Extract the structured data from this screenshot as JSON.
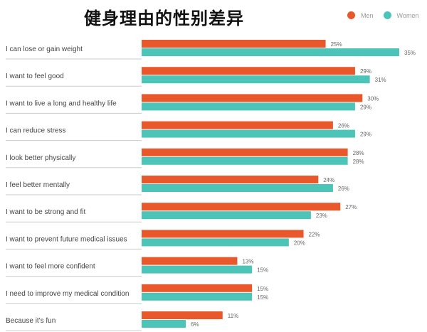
{
  "chart_data": {
    "type": "bar",
    "orientation": "horizontal",
    "title": "健身理由的性别差异",
    "legend_position": "top-right",
    "grid": false,
    "categories": [
      "I can lose or gain weight",
      "I want to feel good",
      "I want to live a long and healthy life",
      "I can reduce stress",
      "I look better physically",
      "I feel better mentally",
      "I want to be strong and fit",
      "I want to prevent future medical issues",
      "I want to feel more confident",
      "I need to improve my medical condition",
      "Because it's fun"
    ],
    "series": [
      {
        "name": "Men",
        "color": "#e8582a",
        "values": [
          25,
          29,
          30,
          26,
          28,
          24,
          27,
          22,
          13,
          15,
          11
        ]
      },
      {
        "name": "Women",
        "color": "#4dc4b8",
        "values": [
          35,
          31,
          29,
          29,
          28,
          26,
          23,
          20,
          15,
          15,
          6
        ]
      }
    ],
    "value_suffix": "%",
    "xlim": [
      0,
      35
    ]
  }
}
